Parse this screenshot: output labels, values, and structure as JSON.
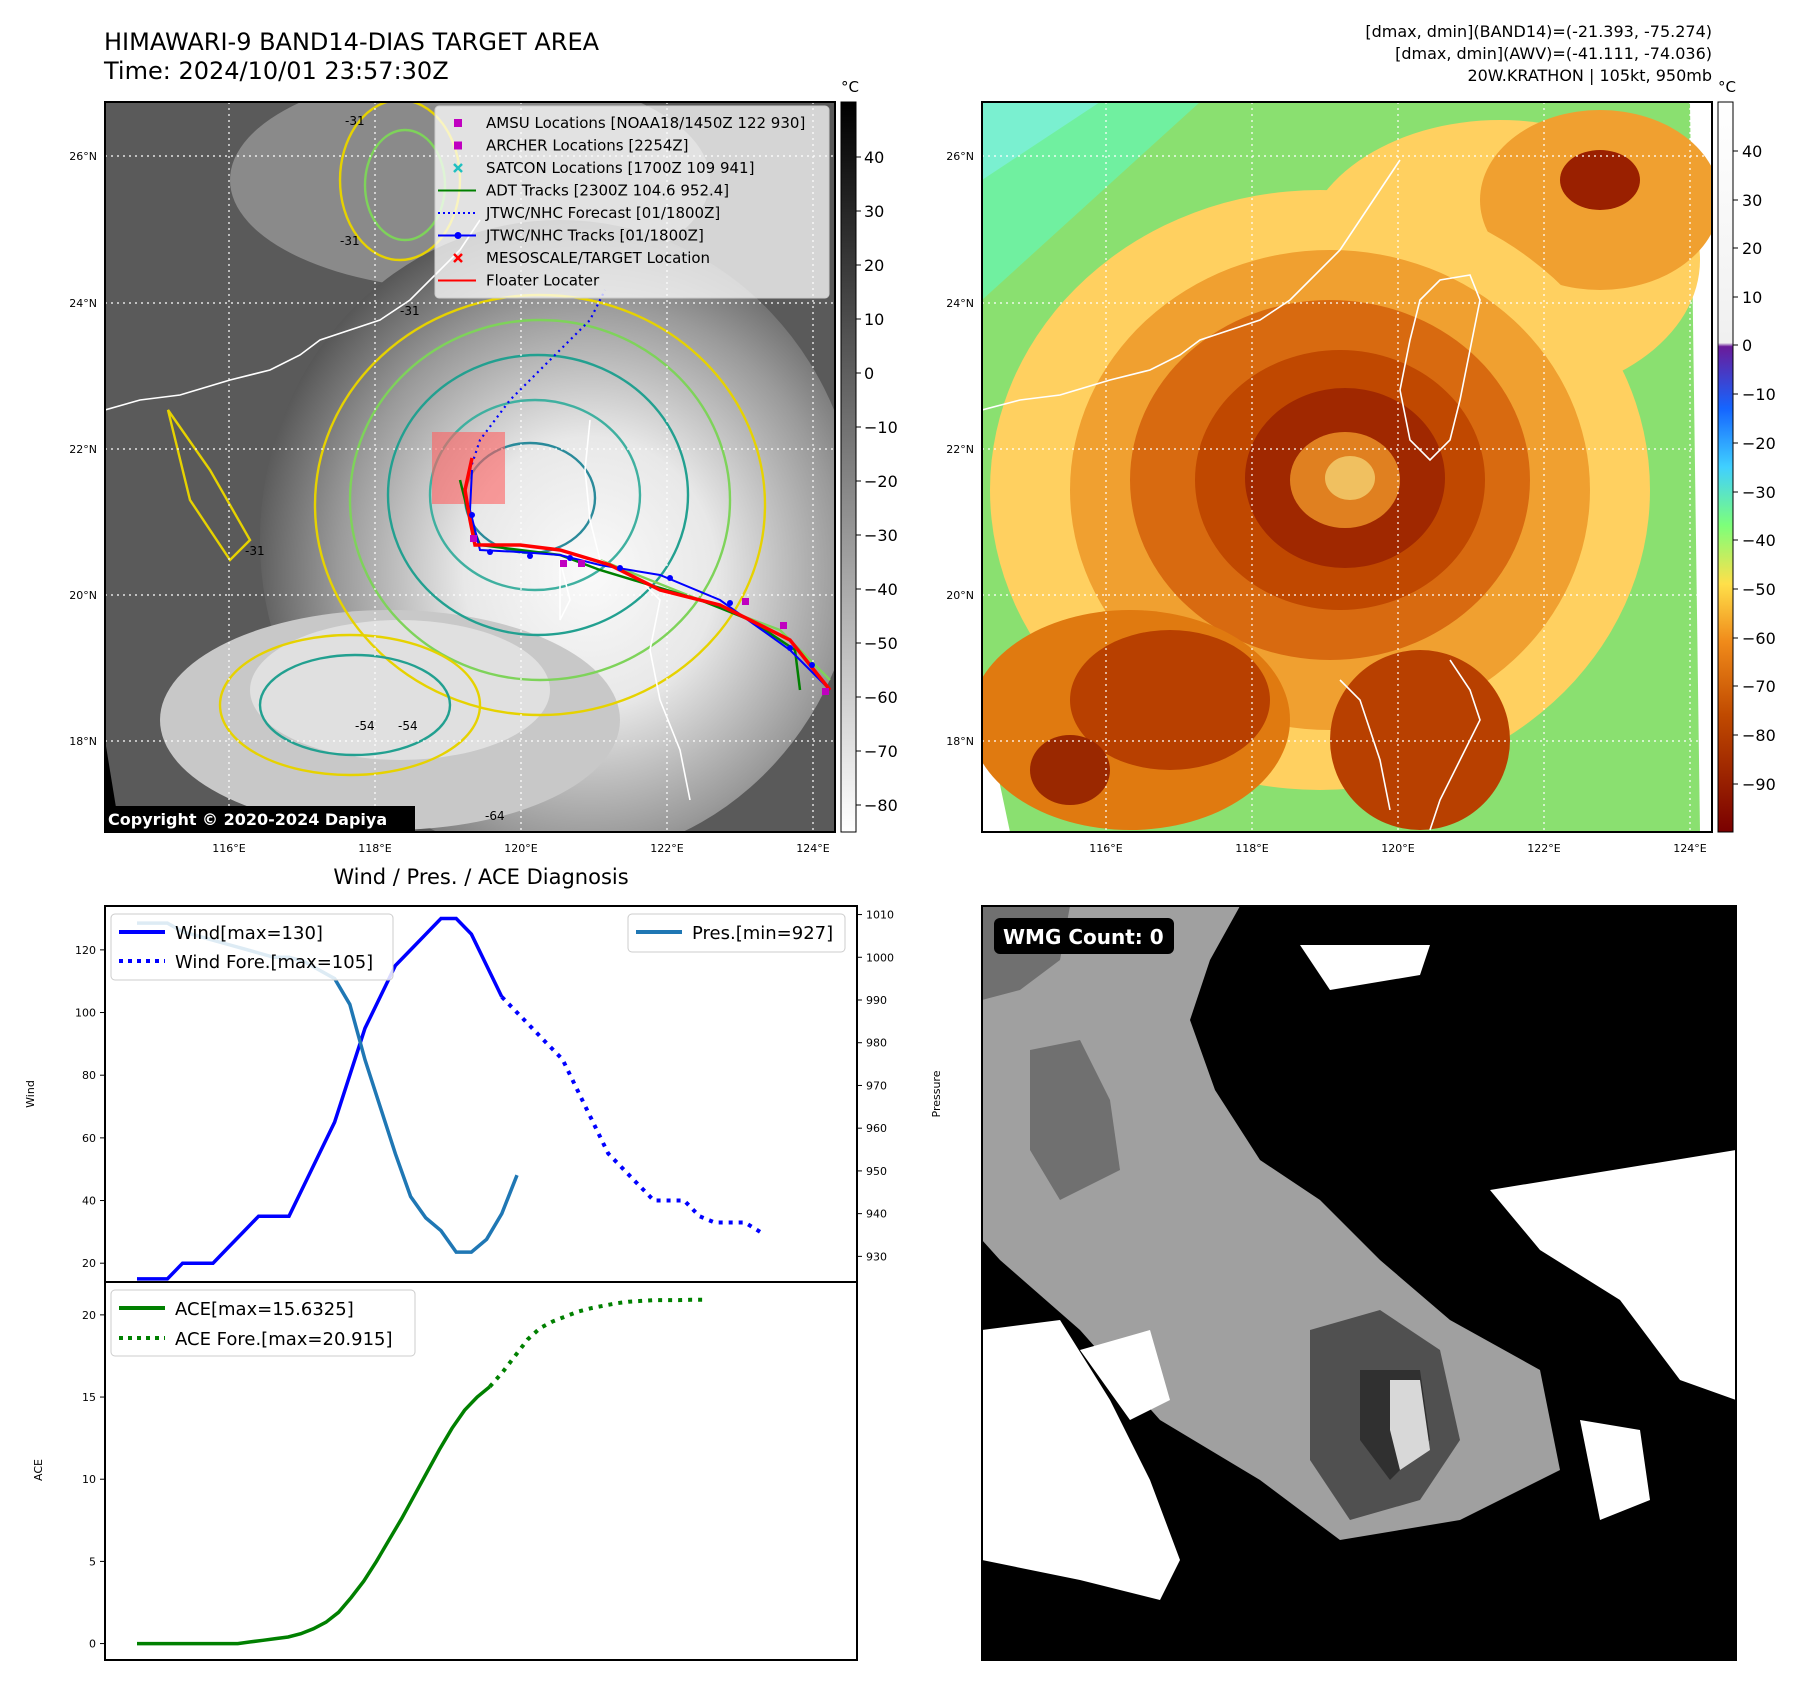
{
  "header": {
    "title_line1": "HIMAWARI-9 BAND14-DIAS TARGET AREA",
    "title_line2": "Time: 2024/10/01 23:57:30Z",
    "info_line1": "[dmax, dmin](BAND14)=(-21.393, -75.274)",
    "info_line2": "[dmax, dmin](AWV)=(-41.111, -74.036)",
    "info_line3": "20W.KRATHON | 105kt, 950mb"
  },
  "maps": {
    "lat_labels": [
      "26°N",
      "24°N",
      "22°N",
      "20°N",
      "18°N"
    ],
    "lon_labels": [
      "116°E",
      "118°E",
      "120°E",
      "122°E",
      "124°E"
    ],
    "unit": "°C",
    "gray_ticks": [
      "40",
      "30",
      "20",
      "10",
      "0",
      "−10",
      "−20",
      "−30",
      "−40",
      "−50",
      "−60",
      "−70",
      "−80"
    ],
    "color_ticks": [
      "40",
      "30",
      "20",
      "10",
      "0",
      "−10",
      "−20",
      "−30",
      "−40",
      "−50",
      "−60",
      "−70",
      "−80",
      "−90"
    ],
    "copyright": "Copyright © 2020-2024 Dapiya",
    "contour_labels": [
      "-31",
      "-31",
      "-31",
      "-31",
      "-54",
      "-54",
      "-64"
    ],
    "legend": [
      {
        "label": "AMSU Locations [NOAA18/1450Z 122 930]",
        "symbol": "square",
        "color": "#c000c0"
      },
      {
        "label": "ARCHER Locations [2254Z]",
        "symbol": "square",
        "color": "#c000c0"
      },
      {
        "label": "SATCON Locations [1700Z 109 941]",
        "symbol": "x",
        "color": "#20c0c0"
      },
      {
        "label": "ADT Tracks [2300Z 104.6 952.4]",
        "symbol": "line",
        "color": "#008000"
      },
      {
        "label": "JTWC/NHC Forecast [01/1800Z]",
        "symbol": "dotted",
        "color": "#0000ff"
      },
      {
        "label": "JTWC/NHC Tracks [01/1800Z]",
        "symbol": "line-dot",
        "color": "#0000ff"
      },
      {
        "label": "MESOSCALE/TARGET Location",
        "symbol": "x",
        "color": "#ff0000"
      },
      {
        "label": "Floater Locater",
        "symbol": "line",
        "color": "#ff0000"
      }
    ]
  },
  "wmg": {
    "label": "WMG Count: 0"
  },
  "chart_data": [
    {
      "type": "line",
      "title": "Wind / Pres. / ACE Diagnosis",
      "ylabel": "Wind",
      "y2label": "Pressure",
      "ylim": [
        14,
        134
      ],
      "y2lim": [
        924,
        1012
      ],
      "yticks": [
        20,
        40,
        60,
        80,
        100,
        120
      ],
      "y2ticks": [
        930,
        940,
        950,
        960,
        970,
        980,
        990,
        1000,
        1010
      ],
      "series": [
        {
          "name": "Wind[max=130]",
          "style": "solid",
          "color": "#0000ff",
          "values": [
            15,
            15,
            15,
            20,
            20,
            20,
            25,
            30,
            35,
            35,
            35,
            45,
            55,
            65,
            80,
            95,
            105,
            115,
            120,
            125,
            130,
            130,
            125,
            115,
            105
          ]
        },
        {
          "name": "Wind Fore.[max=105]",
          "style": "dotted",
          "color": "#0000ff",
          "values": [
            105,
            100,
            95,
            90,
            85,
            75,
            65,
            55,
            50,
            45,
            40,
            40,
            40,
            35,
            33,
            33,
            33,
            30
          ]
        },
        {
          "name": "Pres.[min=927]",
          "style": "solid",
          "color": "#1f77b4",
          "axis": "y2",
          "values": [
            1008,
            1008,
            1008,
            1006,
            1005,
            1004,
            1003,
            1002,
            1001,
            1000,
            1000,
            999,
            997,
            995,
            989,
            976,
            965,
            954,
            944,
            939,
            936,
            931,
            931,
            934,
            940,
            949
          ]
        }
      ]
    },
    {
      "type": "line",
      "ylabel": "ACE",
      "ylim": [
        -1,
        22
      ],
      "yticks": [
        0,
        5,
        10,
        15,
        20
      ],
      "series": [
        {
          "name": "ACE[max=15.6325]",
          "style": "solid",
          "color": "#008000",
          "values": [
            0,
            0,
            0,
            0,
            0,
            0,
            0,
            0,
            0,
            0.1,
            0.2,
            0.3,
            0.4,
            0.6,
            0.9,
            1.3,
            1.9,
            2.8,
            3.8,
            5.0,
            6.3,
            7.6,
            9.0,
            10.4,
            11.8,
            13.1,
            14.2,
            15.0,
            15.63
          ]
        },
        {
          "name": "ACE Fore.[max=20.915]",
          "style": "dotted",
          "color": "#008000",
          "values": [
            15.63,
            16.5,
            17.5,
            18.5,
            19.2,
            19.6,
            19.9,
            20.2,
            20.4,
            20.55,
            20.7,
            20.8,
            20.85,
            20.9,
            20.9,
            20.9,
            20.915,
            20.915
          ]
        }
      ]
    }
  ]
}
